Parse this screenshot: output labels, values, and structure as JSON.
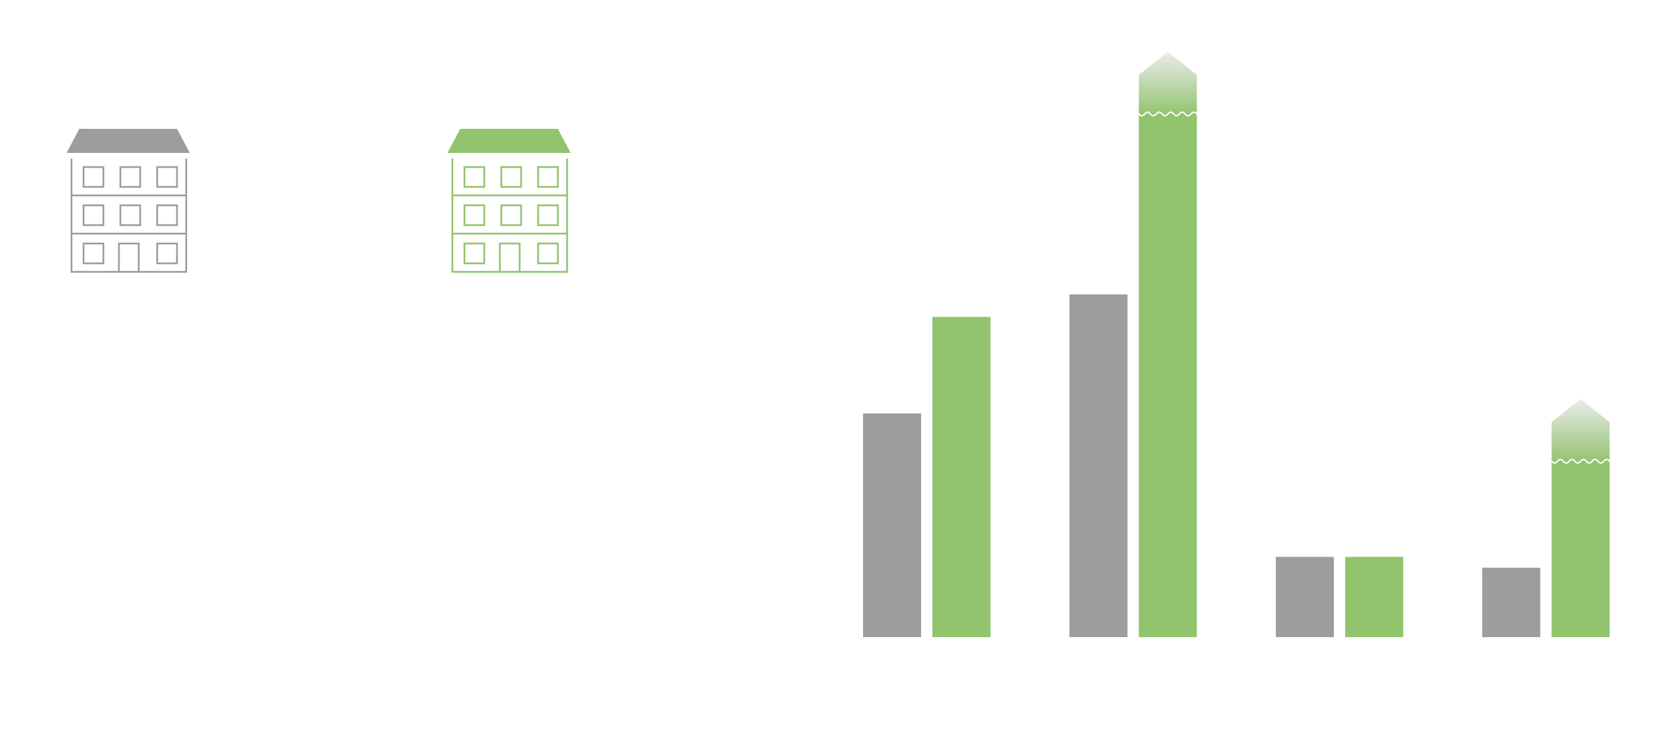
{
  "colors": {
    "baseline": "#9d9d9b",
    "comparison": "#92c36d",
    "background": "#ffffff"
  },
  "legend": [
    {
      "icon": "building-icon",
      "color": "#9d9d9b"
    },
    {
      "icon": "building-icon",
      "color": "#92c36d"
    }
  ],
  "chart_data": {
    "type": "bar",
    "grid": false,
    "legend_placement": "top-left",
    "ylim": [
      0,
      620
    ],
    "categories": [
      "",
      "",
      "",
      ""
    ],
    "series": [
      {
        "color": "#9d9d9b",
        "values": [
          248,
          380,
          89,
          77
        ]
      },
      {
        "color": "#92c36d",
        "values": [
          355,
          580,
          89,
          195
        ]
      }
    ],
    "broken_bars": [
      {
        "series": 1,
        "category": 1
      },
      {
        "series": 1,
        "category": 3
      }
    ]
  }
}
